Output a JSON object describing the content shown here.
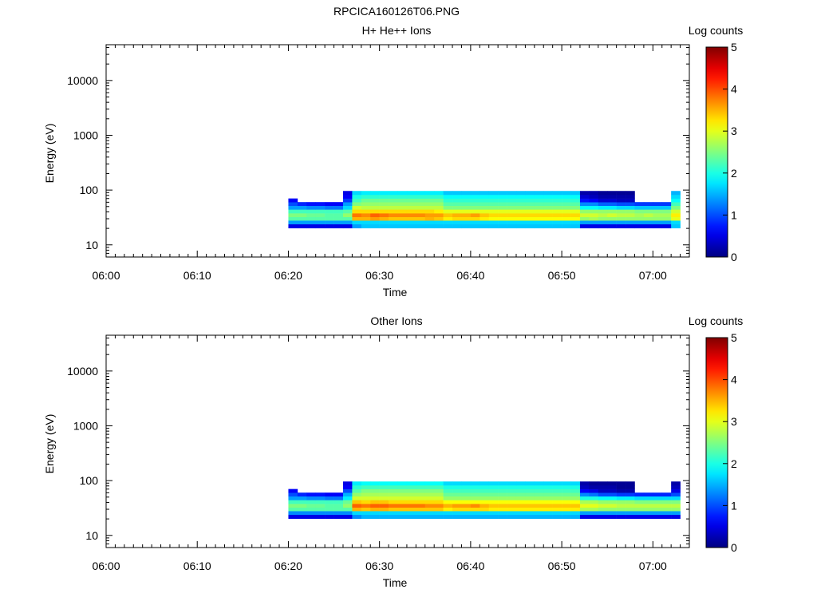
{
  "figure": {
    "title": "RPCICA160126T06.PNG"
  },
  "chart_data": [
    {
      "type": "heatmap",
      "title": "H+ He++ Ions",
      "xlabel": "Time",
      "ylabel": "Energy (eV)",
      "yscale": "log",
      "ylim": [
        6,
        45000
      ],
      "xlim": [
        "06:00",
        "07:04"
      ],
      "x_ticks": [
        "06:00",
        "06:10",
        "06:20",
        "06:30",
        "06:40",
        "06:50",
        "07:00"
      ],
      "y_ticks": [
        "10",
        "100",
        "1000",
        "10000"
      ],
      "colorbar": {
        "label": "Log counts",
        "min": 0,
        "max": 5,
        "ticks": [
          "0",
          "1",
          "2",
          "3",
          "4",
          "5"
        ],
        "colormap": "jet"
      },
      "time_range_with_data": [
        "06:20",
        "07:02"
      ],
      "energy_range_with_data_eV": [
        20,
        95
      ],
      "energy_bins_eV": [
        22,
        26,
        30,
        35,
        41,
        48,
        56,
        65,
        76,
        89
      ],
      "time_bins": [
        "06:20",
        "06:21",
        "06:22",
        "06:23",
        "06:24",
        "06:25",
        "06:26",
        "06:27",
        "06:28",
        "06:29",
        "06:30",
        "06:31",
        "06:32",
        "06:33",
        "06:34",
        "06:35",
        "06:36",
        "06:37",
        "06:38",
        "06:39",
        "06:40",
        "06:41",
        "06:42",
        "06:43",
        "06:44",
        "06:45",
        "06:46",
        "06:47",
        "06:48",
        "06:49",
        "06:50",
        "06:51",
        "06:52",
        "06:53",
        "06:54",
        "06:55",
        "06:56",
        "06:57",
        "06:58",
        "06:59",
        "07:00",
        "07:01",
        "07:02"
      ],
      "log_counts": [
        [
          0.5,
          0.5,
          0.5,
          0.5,
          0.5,
          0.5,
          0.5,
          1.4,
          1.6,
          1.6,
          1.6,
          1.6,
          1.6,
          1.6,
          1.6,
          1.6,
          1.6,
          1.6,
          1.6,
          1.6,
          1.6,
          1.6,
          1.6,
          1.6,
          1.6,
          1.6,
          1.6,
          1.6,
          1.6,
          1.6,
          1.6,
          1.6,
          0.5,
          0.5,
          0.5,
          0.5,
          0.5,
          0.5,
          0.5,
          0.5,
          0.5,
          0.5,
          1.6
        ],
        [
          1.4,
          1.4,
          1.4,
          1.4,
          1.4,
          1.4,
          1.4,
          1.7,
          1.7,
          1.7,
          1.7,
          1.7,
          1.7,
          1.7,
          1.7,
          1.7,
          1.7,
          1.7,
          1.7,
          1.7,
          1.7,
          1.7,
          1.7,
          1.7,
          1.7,
          1.7,
          1.7,
          1.7,
          1.7,
          1.7,
          1.7,
          1.7,
          1.4,
          1.4,
          1.4,
          1.4,
          1.4,
          1.4,
          1.4,
          1.4,
          1.4,
          1.4,
          1.7
        ],
        [
          2.3,
          2.3,
          2.3,
          2.3,
          2.3,
          2.3,
          2.3,
          3.5,
          3.5,
          3.6,
          3.5,
          3.4,
          3.4,
          3.4,
          3.4,
          3.5,
          3.4,
          3.2,
          3.3,
          3.3,
          3.3,
          3.2,
          3.1,
          3.1,
          3.1,
          3.1,
          3.1,
          3.1,
          3.1,
          3.1,
          3.1,
          3.1,
          2.6,
          2.7,
          2.6,
          2.6,
          2.6,
          2.6,
          2.6,
          2.6,
          2.6,
          2.6,
          3.0
        ],
        [
          2.5,
          2.5,
          2.4,
          2.4,
          2.3,
          2.3,
          2.6,
          3.8,
          3.7,
          3.9,
          3.8,
          3.7,
          3.7,
          3.7,
          3.7,
          3.6,
          3.6,
          3.4,
          3.5,
          3.5,
          3.6,
          3.4,
          3.3,
          3.3,
          3.3,
          3.3,
          3.3,
          3.3,
          3.3,
          3.3,
          3.3,
          3.3,
          2.9,
          2.9,
          2.8,
          2.9,
          2.8,
          2.8,
          2.7,
          2.8,
          2.7,
          2.7,
          3.2
        ],
        [
          2.2,
          2.2,
          2.2,
          2.2,
          2.2,
          2.2,
          2.3,
          3.3,
          3.3,
          3.3,
          3.3,
          3.3,
          3.3,
          3.3,
          3.3,
          3.3,
          3.2,
          3.0,
          3.0,
          3.0,
          3.0,
          3.0,
          3.0,
          3.0,
          3.0,
          3.0,
          3.0,
          3.0,
          3.0,
          3.0,
          3.0,
          3.0,
          2.6,
          2.6,
          2.6,
          2.6,
          2.6,
          2.6,
          2.5,
          2.5,
          2.5,
          2.5,
          2.9
        ],
        [
          1.4,
          1.4,
          1.3,
          1.3,
          1.2,
          1.2,
          1.7,
          2.9,
          2.8,
          2.8,
          2.8,
          2.8,
          2.8,
          2.8,
          2.8,
          2.8,
          2.8,
          2.5,
          2.5,
          2.5,
          2.5,
          2.5,
          2.5,
          2.5,
          2.5,
          2.5,
          2.5,
          2.5,
          2.5,
          2.5,
          2.5,
          2.5,
          1.9,
          1.9,
          1.8,
          1.8,
          1.7,
          1.7,
          1.6,
          1.6,
          1.6,
          1.6,
          2.5
        ],
        [
          1.0,
          0.8,
          0.7,
          0.7,
          0.6,
          0.6,
          1.4,
          2.5,
          2.6,
          2.6,
          2.6,
          2.6,
          2.6,
          2.6,
          2.6,
          2.6,
          2.6,
          2.3,
          2.3,
          2.3,
          2.3,
          2.3,
          2.3,
          2.3,
          2.3,
          2.3,
          2.3,
          2.3,
          2.3,
          2.3,
          2.3,
          2.3,
          1.3,
          1.3,
          1.1,
          1.1,
          1.0,
          1.0,
          0.9,
          0.9,
          0.9,
          0.9,
          2.2
        ],
        [
          0.6,
          0.0,
          0.0,
          0.0,
          0.0,
          0.0,
          0.9,
          2.2,
          2.4,
          2.4,
          2.4,
          2.4,
          2.4,
          2.4,
          2.4,
          2.4,
          2.4,
          2.1,
          2.1,
          2.1,
          2.1,
          2.1,
          2.1,
          2.1,
          2.1,
          2.1,
          2.1,
          2.1,
          2.1,
          2.1,
          2.1,
          2.1,
          0.7,
          0.6,
          0.4,
          0.4,
          0.3,
          0.3,
          0.0,
          0.0,
          0.0,
          0.0,
          1.9
        ],
        [
          0.0,
          0.0,
          0.0,
          0.0,
          0.0,
          0.0,
          0.6,
          2.0,
          2.1,
          2.1,
          2.1,
          2.1,
          2.1,
          2.1,
          2.1,
          2.1,
          2.1,
          1.9,
          1.9,
          1.9,
          1.9,
          1.9,
          1.9,
          1.9,
          1.9,
          1.9,
          1.9,
          1.9,
          1.9,
          1.9,
          1.9,
          1.9,
          0.4,
          0.3,
          0.2,
          0.2,
          0.2,
          0.2,
          0.0,
          0.0,
          0.0,
          0.0,
          1.7
        ],
        [
          0.0,
          0.0,
          0.0,
          0.0,
          0.0,
          0.0,
          0.5,
          1.7,
          1.8,
          1.8,
          1.8,
          1.8,
          1.8,
          1.8,
          1.8,
          1.8,
          1.8,
          1.6,
          1.6,
          1.6,
          1.6,
          1.6,
          1.6,
          1.6,
          1.6,
          1.6,
          1.6,
          1.6,
          1.6,
          1.6,
          1.6,
          1.6,
          0.2,
          0.2,
          0.1,
          0.1,
          0.1,
          0.1,
          0.0,
          0.0,
          0.0,
          0.0,
          1.5
        ]
      ]
    },
    {
      "type": "heatmap",
      "title": "Other Ions",
      "xlabel": "Time",
      "ylabel": "Energy (eV)",
      "yscale": "log",
      "ylim": [
        6,
        45000
      ],
      "xlim": [
        "06:00",
        "07:04"
      ],
      "x_ticks": [
        "06:00",
        "06:10",
        "06:20",
        "06:30",
        "06:40",
        "06:50",
        "07:00"
      ],
      "y_ticks": [
        "10",
        "100",
        "1000",
        "10000"
      ],
      "colorbar": {
        "label": "Log counts",
        "min": 0,
        "max": 5,
        "ticks": [
          "0",
          "1",
          "2",
          "3",
          "4",
          "5"
        ],
        "colormap": "jet"
      },
      "time_range_with_data": [
        "06:20",
        "07:02"
      ],
      "energy_range_with_data_eV": [
        20,
        95
      ],
      "energy_bins_eV": [
        22,
        26,
        30,
        35,
        41,
        48,
        56,
        65,
        76,
        89
      ],
      "time_bins": [
        "06:20",
        "06:21",
        "06:22",
        "06:23",
        "06:24",
        "06:25",
        "06:26",
        "06:27",
        "06:28",
        "06:29",
        "06:30",
        "06:31",
        "06:32",
        "06:33",
        "06:34",
        "06:35",
        "06:36",
        "06:37",
        "06:38",
        "06:39",
        "06:40",
        "06:41",
        "06:42",
        "06:43",
        "06:44",
        "06:45",
        "06:46",
        "06:47",
        "06:48",
        "06:49",
        "06:50",
        "06:51",
        "06:52",
        "06:53",
        "06:54",
        "06:55",
        "06:56",
        "06:57",
        "06:58",
        "06:59",
        "07:00",
        "07:01",
        "07:02"
      ],
      "log_counts": [
        [
          0.5,
          0.5,
          0.5,
          0.5,
          0.5,
          0.5,
          0.5,
          1.3,
          1.5,
          1.5,
          1.5,
          1.5,
          1.5,
          1.5,
          1.5,
          1.5,
          1.5,
          1.5,
          1.5,
          1.5,
          1.5,
          1.5,
          1.5,
          1.5,
          1.5,
          1.5,
          1.5,
          1.5,
          1.5,
          1.5,
          1.5,
          1.5,
          0.5,
          0.5,
          0.5,
          0.5,
          0.5,
          0.5,
          0.5,
          0.5,
          0.5,
          0.5,
          0.5
        ],
        [
          1.3,
          1.3,
          1.3,
          1.3,
          1.3,
          1.3,
          1.3,
          1.7,
          1.7,
          1.7,
          1.7,
          1.7,
          1.7,
          1.7,
          1.7,
          1.7,
          1.7,
          1.7,
          1.7,
          1.7,
          1.7,
          1.7,
          1.7,
          1.7,
          1.7,
          1.7,
          1.7,
          1.7,
          1.7,
          1.7,
          1.7,
          1.7,
          1.4,
          1.4,
          1.4,
          1.4,
          1.4,
          1.4,
          1.4,
          1.4,
          1.4,
          1.4,
          1.4
        ],
        [
          2.3,
          2.3,
          2.3,
          2.3,
          2.3,
          2.3,
          2.3,
          3.5,
          3.4,
          3.5,
          3.5,
          3.4,
          3.4,
          3.4,
          3.4,
          3.4,
          3.4,
          3.2,
          3.3,
          3.3,
          3.3,
          3.3,
          3.2,
          3.2,
          3.2,
          3.2,
          3.2,
          3.2,
          3.2,
          3.2,
          3.2,
          3.2,
          2.7,
          2.7,
          2.6,
          2.6,
          2.6,
          2.6,
          2.6,
          2.6,
          2.6,
          2.6,
          2.6
        ],
        [
          2.5,
          2.5,
          2.4,
          2.4,
          2.3,
          2.3,
          2.6,
          3.9,
          3.8,
          3.9,
          3.9,
          3.8,
          3.8,
          3.8,
          3.8,
          3.7,
          3.7,
          3.5,
          3.6,
          3.6,
          3.7,
          3.5,
          3.4,
          3.4,
          3.4,
          3.4,
          3.4,
          3.4,
          3.4,
          3.4,
          3.4,
          3.4,
          3.0,
          3.0,
          2.9,
          2.9,
          2.8,
          2.8,
          2.8,
          2.8,
          2.8,
          2.8,
          2.8
        ],
        [
          2.2,
          2.2,
          2.2,
          2.2,
          2.2,
          2.2,
          2.4,
          3.4,
          3.3,
          3.4,
          3.4,
          3.3,
          3.3,
          3.3,
          3.3,
          3.3,
          3.3,
          3.1,
          3.1,
          3.1,
          3.1,
          3.1,
          3.1,
          3.1,
          3.1,
          3.1,
          3.1,
          3.1,
          3.1,
          3.1,
          3.1,
          3.1,
          2.7,
          2.7,
          2.6,
          2.6,
          2.6,
          2.6,
          2.5,
          2.5,
          2.5,
          2.5,
          2.5
        ],
        [
          1.4,
          1.4,
          1.3,
          1.3,
          1.2,
          1.2,
          1.8,
          2.9,
          2.9,
          2.9,
          2.9,
          2.9,
          2.9,
          2.9,
          2.9,
          2.9,
          2.9,
          2.6,
          2.6,
          2.6,
          2.6,
          2.6,
          2.6,
          2.6,
          2.6,
          2.6,
          2.6,
          2.6,
          2.6,
          2.6,
          2.6,
          2.6,
          2.0,
          2.0,
          1.9,
          1.9,
          1.8,
          1.8,
          1.7,
          1.7,
          1.7,
          1.7,
          1.7
        ],
        [
          1.0,
          0.8,
          0.7,
          0.7,
          0.6,
          0.6,
          1.5,
          2.6,
          2.7,
          2.7,
          2.7,
          2.7,
          2.7,
          2.7,
          2.7,
          2.7,
          2.7,
          2.4,
          2.4,
          2.4,
          2.4,
          2.4,
          2.4,
          2.4,
          2.4,
          2.4,
          2.4,
          2.4,
          2.4,
          2.4,
          2.4,
          2.4,
          1.3,
          1.2,
          1.0,
          1.0,
          0.9,
          0.9,
          0.8,
          0.8,
          0.8,
          0.8,
          1.0
        ],
        [
          0.6,
          0.0,
          0.0,
          0.0,
          0.0,
          0.0,
          1.0,
          2.3,
          2.5,
          2.5,
          2.5,
          2.5,
          2.5,
          2.5,
          2.5,
          2.5,
          2.5,
          2.2,
          2.2,
          2.2,
          2.2,
          2.2,
          2.2,
          2.2,
          2.2,
          2.2,
          2.2,
          2.2,
          2.2,
          2.2,
          2.2,
          2.2,
          0.6,
          0.5,
          0.3,
          0.3,
          0.2,
          0.2,
          0.0,
          0.0,
          0.0,
          0.0,
          0.5
        ],
        [
          0.0,
          0.0,
          0.0,
          0.0,
          0.0,
          0.0,
          0.6,
          2.1,
          2.2,
          2.2,
          2.2,
          2.2,
          2.2,
          2.2,
          2.2,
          2.2,
          2.2,
          2.0,
          2.0,
          2.0,
          2.0,
          2.0,
          2.0,
          2.0,
          2.0,
          2.0,
          2.0,
          2.0,
          2.0,
          2.0,
          2.0,
          2.0,
          0.3,
          0.2,
          0.2,
          0.2,
          0.1,
          0.1,
          0.0,
          0.0,
          0.0,
          0.0,
          0.3
        ],
        [
          0.0,
          0.0,
          0.0,
          0.0,
          0.0,
          0.0,
          0.5,
          1.8,
          1.9,
          1.9,
          1.9,
          1.9,
          1.9,
          1.9,
          1.9,
          1.9,
          1.9,
          1.7,
          1.7,
          1.7,
          1.7,
          1.7,
          1.7,
          1.7,
          1.7,
          1.7,
          1.7,
          1.7,
          1.7,
          1.7,
          1.7,
          1.7,
          0.2,
          0.1,
          0.1,
          0.1,
          0.1,
          0.1,
          0.0,
          0.0,
          0.0,
          0.0,
          0.2
        ]
      ]
    }
  ]
}
